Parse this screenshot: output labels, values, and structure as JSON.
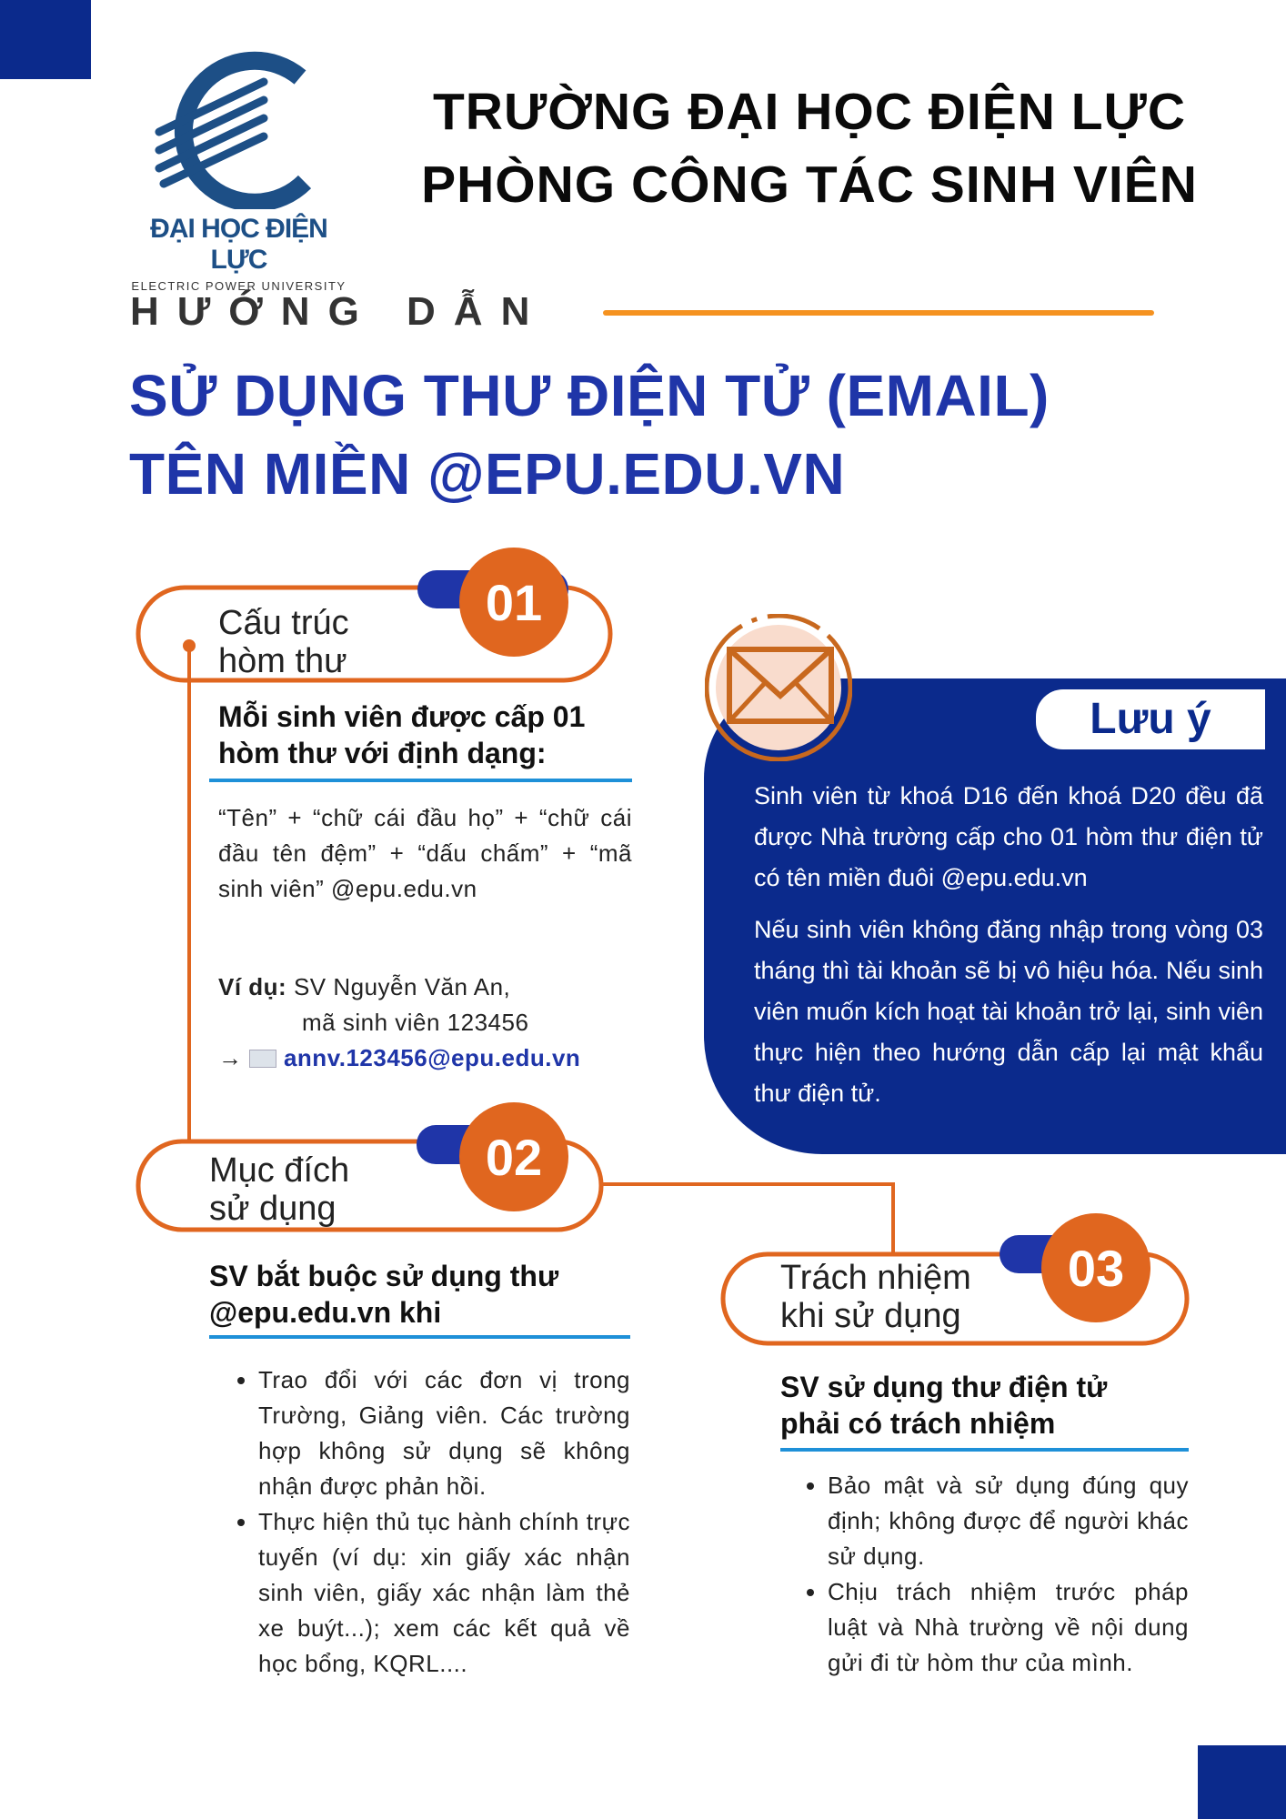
{
  "logo": {
    "name_vi": "ĐẠI HỌC ĐIỆN LỰC",
    "name_en": "ELECTRIC POWER UNIVERSITY"
  },
  "header": {
    "line1": "TRƯỜNG ĐẠI HỌC ĐIỆN LỰC",
    "line2": "PHÒNG CÔNG TÁC SINH VIÊN"
  },
  "guide_label": "HƯỚNG DẪN",
  "main_title": {
    "line1": "SỬ DỤNG THƯ ĐIỆN TỬ (EMAIL)",
    "line2": "TÊN MIỀN @EPU.EDU.VN"
  },
  "colors": {
    "navy": "#0b2a8c",
    "title_blue": "#1f35a8",
    "orange": "#e0661f",
    "accent_line": "#f59220",
    "rule_blue": "#1e90d8"
  },
  "section1": {
    "number": "01",
    "label1": "Cấu trúc",
    "label2": "hòm thư",
    "heading": "Mỗi sinh viên được cấp 01 hòm thư với định dạng:",
    "format": "“Tên” + “chữ cái đầu họ” + “chữ cái đầu tên đệm” + “dấu chấm” + “mã sinh viên” @epu.edu.vn",
    "example_label": "Ví dụ:",
    "example_line1": "SV Nguyễn Văn An,",
    "example_line2": "mã sinh viên 123456",
    "arrow": "→",
    "email_icon": "envelope-icon",
    "example_email": "annv.123456@epu.edu.vn"
  },
  "note": {
    "title": "Lưu ý",
    "icon": "envelope-icon",
    "para1": "Sinh viên từ khoá D16 đến khoá D20 đều đã được Nhà trường cấp cho 01 hòm thư điện tử có tên miền đuôi @epu.edu.vn",
    "para2": "Nếu sinh viên không đăng nhập trong vòng 03 tháng thì tài khoản sẽ bị vô hiệu hóa. Nếu sinh viên muốn kích hoạt tài khoản trở lại, sinh viên thực hiện theo hướng dẫn cấp lại mật khẩu thư điện tử."
  },
  "section2": {
    "number": "02",
    "label1": "Mục đích",
    "label2": "sử dụng",
    "heading": "SV bắt buộc sử dụng thư @epu.edu.vn khi",
    "bullets": [
      "Trao đổi với các đơn vị trong Trường, Giảng viên. Các trường hợp không sử dụng sẽ không nhận được phản hồi.",
      "Thực hiện thủ tục hành chính trực tuyến (ví dụ: xin giấy xác nhận sinh viên, giấy xác nhận làm thẻ xe buýt...); xem các kết quả về học bổng, KQRL...."
    ]
  },
  "section3": {
    "number": "03",
    "label1": "Trách nhiệm",
    "label2": "khi sử dụng",
    "heading": "SV sử dụng thư điện tử phải có trách nhiệm",
    "bullets": [
      "Bảo mật và sử dụng đúng quy định; không được để người khác sử dụng.",
      "Chịu trách nhiệm trước pháp luật và Nhà trường về nội dung gửi đi từ hòm thư của mình."
    ]
  }
}
